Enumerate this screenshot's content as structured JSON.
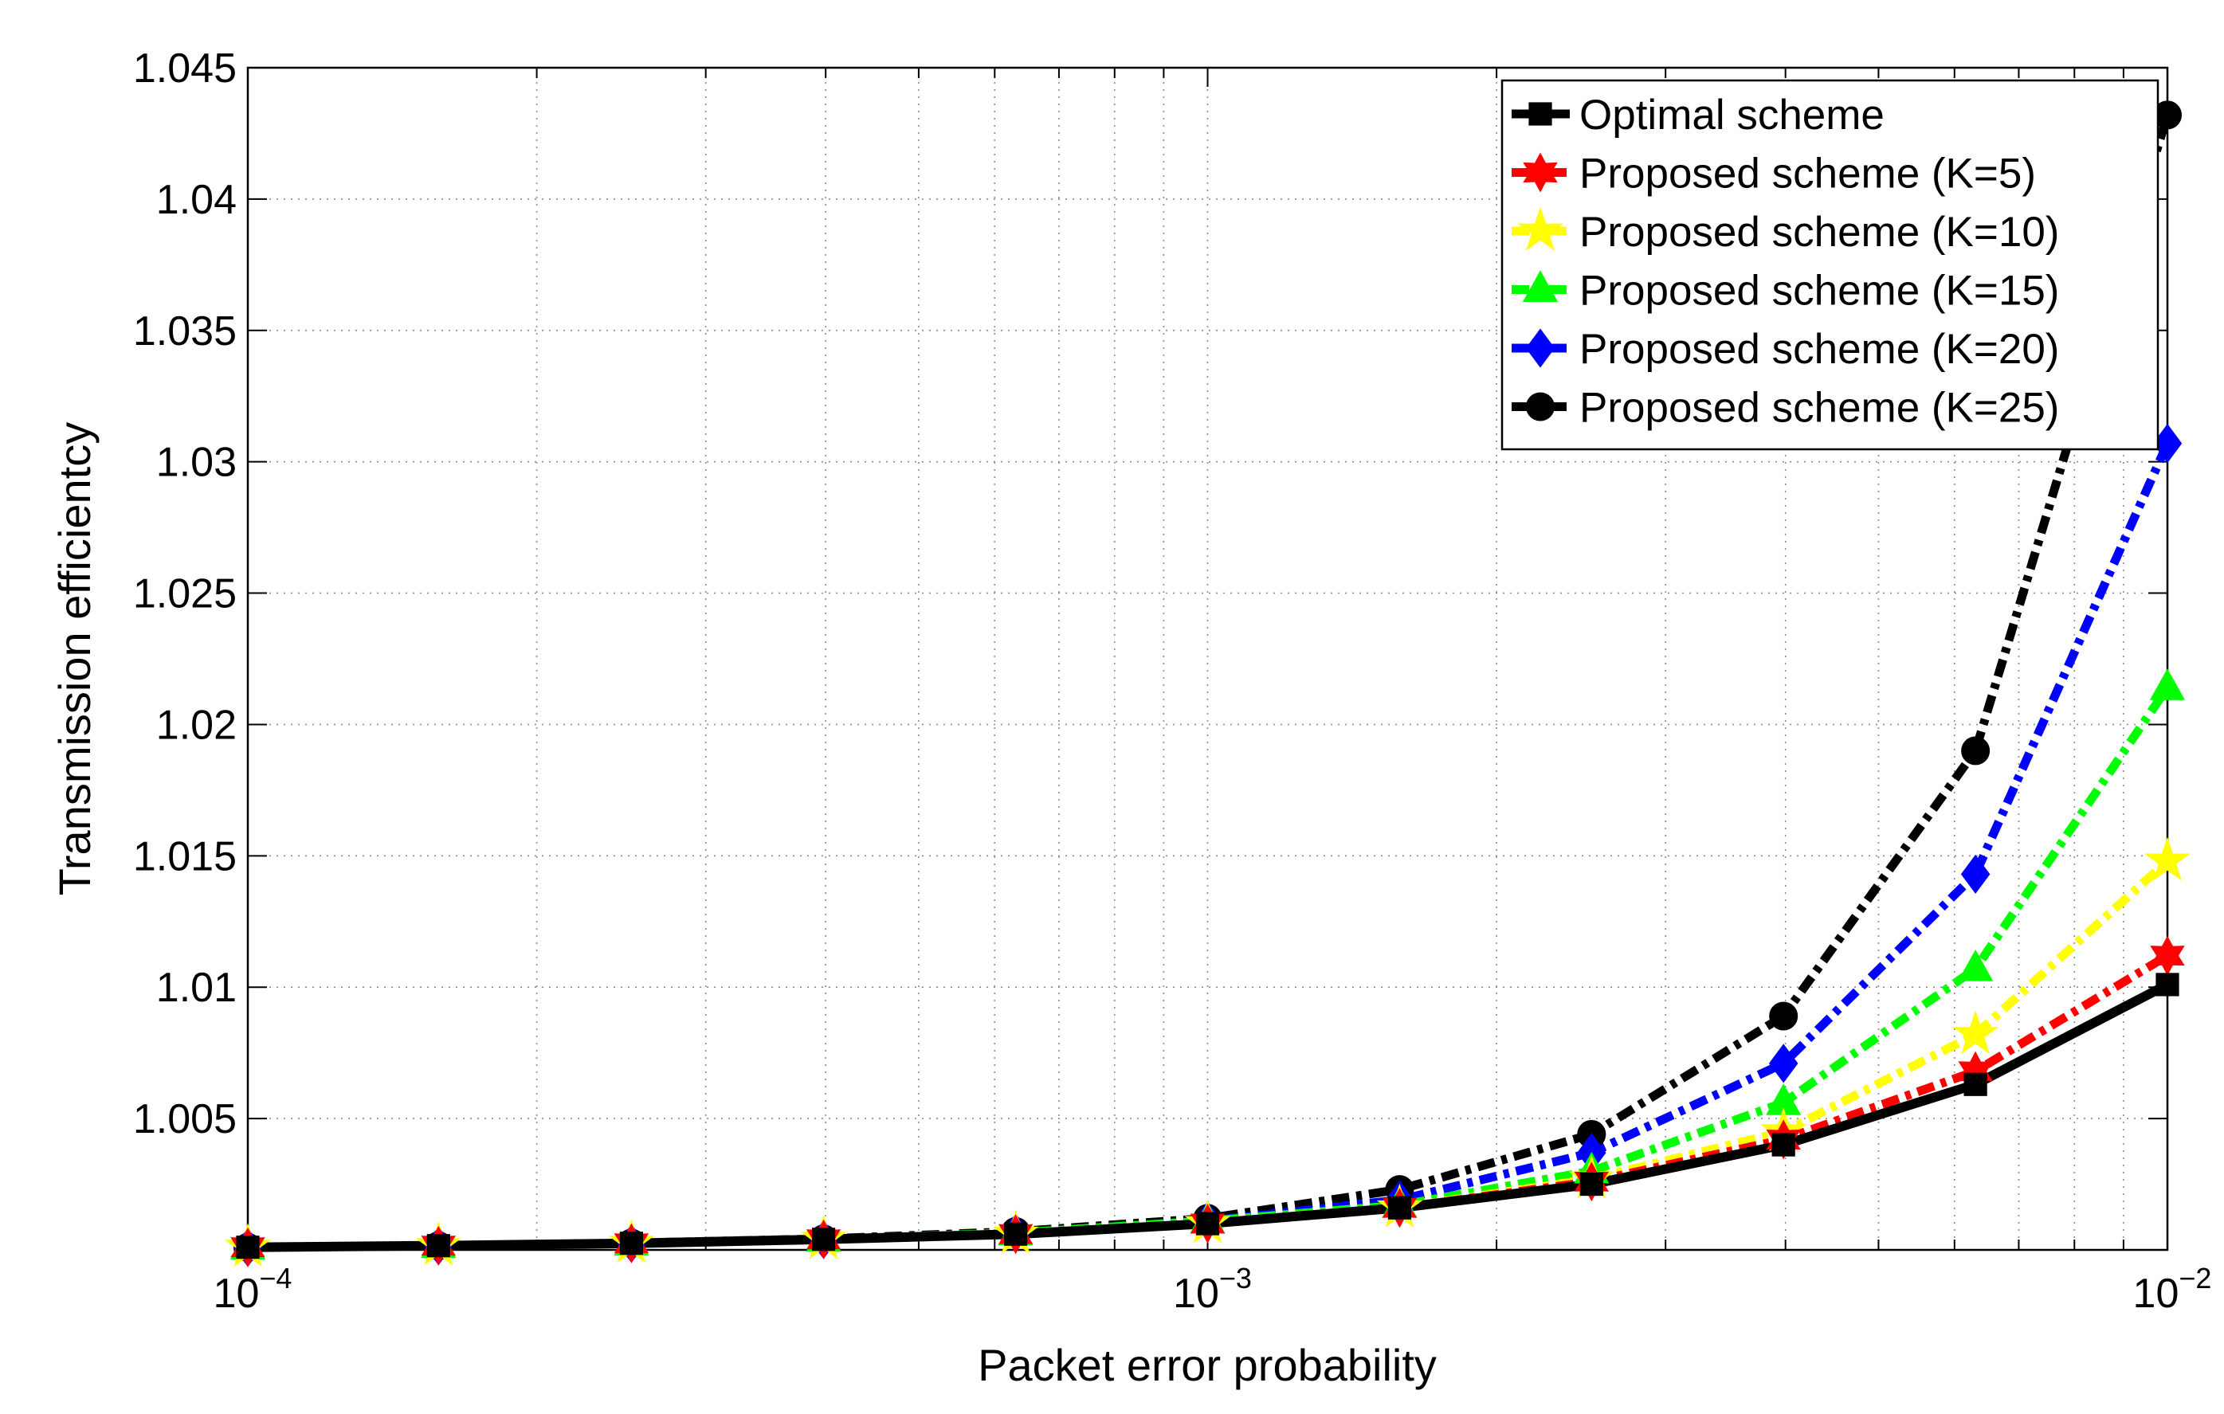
{
  "chart_data": {
    "type": "line",
    "xlabel": "Packet error probability",
    "ylabel": "Transmission efficientcy",
    "xscale": "log",
    "xlim": [
      0.0001,
      0.01
    ],
    "ylim": [
      1.0,
      1.045
    ],
    "grid": true,
    "legend_position": "top-right",
    "x_tick_labels": [
      {
        "value": 0.0001,
        "base": "10",
        "exp": "−4"
      },
      {
        "value": 0.001,
        "base": "10",
        "exp": "−3"
      },
      {
        "value": 0.01,
        "base": "10",
        "exp": "−2"
      }
    ],
    "y_ticks": [
      1.005,
      1.01,
      1.015,
      1.02,
      1.025,
      1.03,
      1.035,
      1.04,
      1.045
    ],
    "y_tick_labels": [
      "1.005",
      "1.01",
      "1.015",
      "1.02",
      "1.025",
      "1.03",
      "1.035",
      "1.04",
      "1.045"
    ],
    "x": [
      0.0001,
      0.000158,
      0.000251,
      0.000398,
      0.000631,
      0.001,
      0.001585,
      0.002512,
      0.003981,
      0.00631,
      0.01
    ],
    "series": [
      {
        "name": "Optimal scheme",
        "color": "#000000",
        "marker": "square",
        "dash": "solid",
        "values": [
          1.0001,
          1.00016,
          1.00025,
          1.0004,
          1.0006,
          1.001,
          1.0016,
          1.0025,
          1.004,
          1.0063,
          1.0101
        ]
      },
      {
        "name": "Proposed scheme (K=5)",
        "color": "#ff0000",
        "marker": "hexagram",
        "dash": "dashdot",
        "values": [
          1.0001,
          1.00016,
          1.00025,
          1.0004,
          1.0006,
          1.001,
          1.0016,
          1.0026,
          1.0042,
          1.0068,
          1.0112
        ]
      },
      {
        "name": "Proposed scheme (K=10)",
        "color": "#ffff00",
        "marker": "pentagram",
        "dash": "dashdot",
        "values": [
          1.0001,
          1.00016,
          1.00025,
          1.0004,
          1.0006,
          1.001,
          1.0016,
          1.0027,
          1.0045,
          1.0082,
          1.0148
        ]
      },
      {
        "name": "Proposed scheme (K=15)",
        "color": "#00ff00",
        "marker": "triangle",
        "dash": "dashdot",
        "values": [
          1.0001,
          1.00016,
          1.00025,
          1.0004,
          1.00065,
          1.0011,
          1.0017,
          1.003,
          1.0056,
          1.0107,
          1.0214
        ]
      },
      {
        "name": "Proposed scheme (K=20)",
        "color": "#0000ff",
        "marker": "diamond",
        "dash": "dashdot",
        "values": [
          1.0001,
          1.00016,
          1.00025,
          1.0004,
          1.00065,
          1.0011,
          1.0019,
          1.0037,
          1.0071,
          1.0143,
          1.0307
        ]
      },
      {
        "name": "Proposed scheme (K=25)",
        "color": "#000000",
        "marker": "circle",
        "dash": "dashdot",
        "values": [
          1.0001,
          1.00016,
          1.00026,
          1.00042,
          1.0007,
          1.0012,
          1.0023,
          1.0044,
          1.0089,
          1.019,
          1.0432
        ]
      }
    ]
  }
}
